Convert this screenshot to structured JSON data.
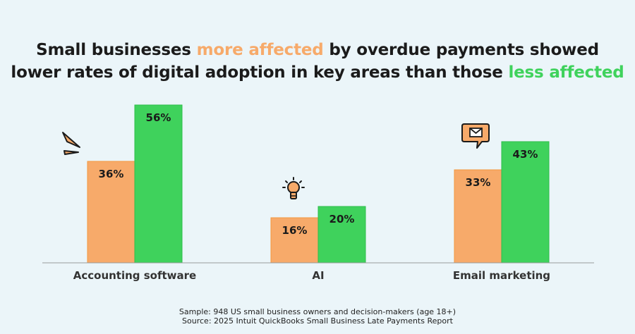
{
  "title": {
    "part1": "Small businesses ",
    "highlight1": "more affected",
    "part2": " by overdue payments showed",
    "part3": "lower rates of digital adoption in key areas than those ",
    "highlight2": "less affected"
  },
  "colors": {
    "background": "#ebf5f9",
    "orange": "#f7aa6a",
    "green": "#3fd25c",
    "text": "#1b1b1b"
  },
  "chart_data": {
    "type": "bar",
    "categories": [
      "Accounting software",
      "AI",
      "Email marketing"
    ],
    "series": [
      {
        "name": "more affected",
        "values": [
          36,
          16,
          33
        ],
        "labels": [
          "36%",
          "16%",
          "33%"
        ]
      },
      {
        "name": "less affected",
        "values": [
          56,
          20,
          43
        ],
        "labels": [
          "56%",
          "20%",
          "43%"
        ]
      }
    ],
    "ylim": [
      0,
      100
    ],
    "grid": false,
    "legend": "none",
    "icons": [
      "megaphone-icon",
      "lightbulb-icon",
      "email-icon"
    ]
  },
  "footnote": {
    "sample": "Sample: 948 US small business owners and decision-makers (age 18+)",
    "source": "Source: 2025 Intuit QuickBooks Small Business Late Payments Report"
  }
}
